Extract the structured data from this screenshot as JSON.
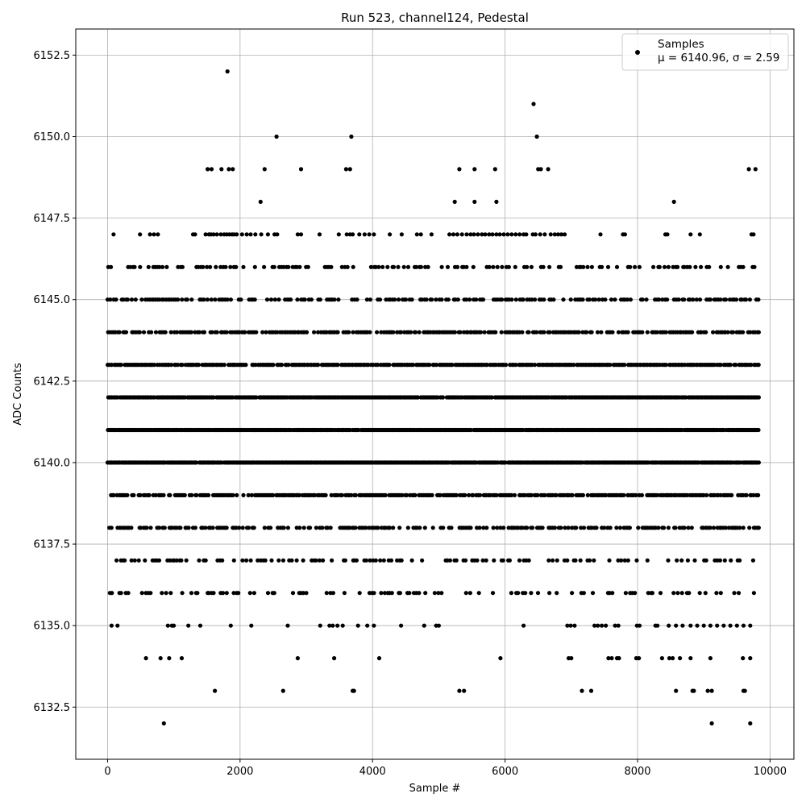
{
  "chart_data": {
    "type": "scatter",
    "title": "Run 523, channel124, Pedestal",
    "xlabel": "Sample #",
    "ylabel": "ADC Counts",
    "xlim": [
      -480,
      10360
    ],
    "ylim": [
      6130.9,
      6153.3
    ],
    "x_ticks": [
      0,
      2000,
      4000,
      6000,
      8000,
      10000
    ],
    "y_ticks": [
      6132.5,
      6135.0,
      6137.5,
      6140.0,
      6142.5,
      6145.0,
      6147.5,
      6150.0,
      6152.5
    ],
    "x_tick_labels": [
      "0",
      "2000",
      "4000",
      "6000",
      "8000",
      "10000"
    ],
    "y_tick_labels": [
      "6132.5",
      "6135.0",
      "6137.5",
      "6140.0",
      "6142.5",
      "6145.0",
      "6147.5",
      "6150.0",
      "6152.5"
    ],
    "grid": true,
    "marker_color": "#000000",
    "legend": {
      "placement": "top-right",
      "series_name": "Samples",
      "stats_text": "μ = 6140.96, σ = 2.59"
    },
    "x_range": [
      0,
      9830
    ],
    "levels": [
      {
        "y": 6132,
        "x": [
          850,
          9120,
          9700
        ]
      },
      {
        "y": 6133,
        "x": [
          1620,
          2650,
          3700,
          3720,
          5310,
          5380,
          7160,
          7300,
          8580,
          8830,
          8850,
          9060,
          9120,
          9600,
          9620
        ]
      },
      {
        "y": 6134,
        "x": [
          580,
          800,
          930,
          1120,
          2870,
          3420,
          4100,
          5930,
          6960,
          7000,
          7560,
          7610,
          7690,
          7720,
          7980,
          8020,
          8370,
          8480,
          8530,
          8640,
          8800,
          9100,
          9590,
          9700
        ]
      },
      {
        "y": 6135,
        "x": [
          60,
          150,
          910,
          970,
          1000,
          1220,
          1400,
          1860,
          2170,
          2720,
          3210,
          3350,
          3400,
          3470,
          3550,
          3780,
          3920,
          4020,
          4430,
          4780,
          4960,
          5000,
          6280,
          6940,
          6990,
          7050,
          7350,
          7400,
          7460,
          7520,
          7660,
          7710,
          7990,
          8030,
          8270,
          8300,
          8470,
          8580,
          8680,
          8800,
          8900,
          9000,
          9100,
          9200,
          9300,
          9400,
          9500,
          9600,
          9700
        ]
      },
      {
        "y": 6136,
        "start": 30,
        "end": 9830,
        "step": 34,
        "keep": 0.38,
        "seed": 11
      },
      {
        "y": 6137,
        "start": 120,
        "end": 9830,
        "step": 34,
        "keep": 0.42,
        "seed": 17
      },
      {
        "y": 6138,
        "start": 20,
        "end": 9830,
        "step": 30,
        "keep": 0.62,
        "seed": 23
      },
      {
        "y": 6139,
        "start": 40,
        "end": 9830,
        "step": 25,
        "keep": 0.82,
        "seed": 29
      },
      {
        "y": 6140,
        "start": 0,
        "end": 9830,
        "step": 20,
        "keep": 0.97,
        "seed": 31
      },
      {
        "y": 6141,
        "start": 0,
        "end": 9830,
        "step": 20,
        "keep": 0.97,
        "seed": 37
      },
      {
        "y": 6142,
        "start": 0,
        "end": 9830,
        "step": 20,
        "keep": 0.96,
        "seed": 41
      },
      {
        "y": 6143,
        "start": 0,
        "end": 9830,
        "step": 25,
        "keep": 0.86,
        "seed": 43
      },
      {
        "y": 6144,
        "start": 0,
        "end": 9830,
        "step": 28,
        "keep": 0.72,
        "seed": 47
      },
      {
        "y": 6145,
        "start": 0,
        "end": 9830,
        "step": 30,
        "keep": 0.6,
        "seed": 53
      },
      {
        "y": 6146,
        "start": 0,
        "end": 9830,
        "step": 34,
        "keep": 0.45,
        "seed": 59
      },
      {
        "y": 6147,
        "x": [
          90,
          490,
          640,
          700,
          760,
          1290,
          1320,
          1480,
          1530,
          1560,
          1600,
          1650,
          1710,
          1760,
          1800,
          1840,
          1880,
          1910,
          1950,
          2030,
          2100,
          2160,
          2230,
          2320,
          2420,
          2520,
          2560,
          2870,
          2920,
          3200,
          3490,
          3610,
          3660,
          3700,
          3800,
          3880,
          3950,
          4020,
          4260,
          4440,
          4670,
          4730,
          4890,
          5160,
          5220,
          5280,
          5350,
          5420,
          5480,
          5530,
          5590,
          5650,
          5700,
          5760,
          5810,
          5870,
          5920,
          5980,
          6040,
          6100,
          6160,
          6220,
          6280,
          6320,
          6420,
          6460,
          6530,
          6600,
          6690,
          6750,
          6800,
          6850,
          6900,
          7440,
          7780,
          7810,
          8420,
          8450,
          8800,
          8940,
          9720,
          9750
        ]
      },
      {
        "y": 6148,
        "x": [
          2310,
          5240,
          5540,
          5870,
          8550
        ]
      },
      {
        "y": 6149,
        "x": [
          1510,
          1570,
          1720,
          1830,
          1890,
          2370,
          2920,
          3600,
          3660,
          5310,
          5540,
          5850,
          6500,
          6540,
          6650,
          9680,
          9780
        ]
      },
      {
        "y": 6150,
        "x": [
          2550,
          3680,
          6480
        ]
      },
      {
        "y": 6151,
        "x": [
          6430
        ]
      },
      {
        "y": 6152,
        "x": [
          1810
        ]
      }
    ]
  }
}
